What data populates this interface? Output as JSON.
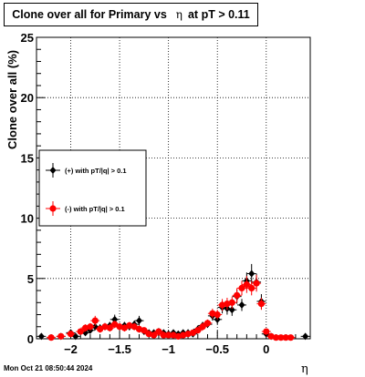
{
  "title": {
    "prefix": "Clone  over all for Primary vs",
    "symbol": "η",
    "suffix": "at pT > 0.11"
  },
  "ylabel": "Clone  over all (%)",
  "xlabel": "η",
  "datestamp": "Mon Oct 21 08:50:44 2024",
  "colors": {
    "plus": "#000000",
    "minus": "#ff0000",
    "grid": "#000000"
  },
  "chart_data": {
    "type": "scatter",
    "xlim": [
      -2.35,
      0.45
    ],
    "ylim": [
      0,
      25
    ],
    "grid": true,
    "legend_placement": "left-middle",
    "x_ticks": [
      {
        "value": -2,
        "label": "−2"
      },
      {
        "value": -1.5,
        "label": "−1.5"
      },
      {
        "value": -1,
        "label": "−1"
      },
      {
        "value": -0.5,
        "label": "−0.5"
      },
      {
        "value": 0,
        "label": "0"
      }
    ],
    "y_ticks": [
      {
        "value": 0,
        "label": "0"
      },
      {
        "value": 5,
        "label": "5"
      },
      {
        "value": 10,
        "label": "10"
      },
      {
        "value": 15,
        "label": "15"
      },
      {
        "value": 20,
        "label": "20"
      },
      {
        "value": 25,
        "label": "25"
      }
    ],
    "series": [
      {
        "name": "(+) with pT/|q| > 0.1",
        "color": "#000000",
        "x": [
          -2.3,
          -2.1,
          -2.0,
          -1.95,
          -1.85,
          -1.8,
          -1.75,
          -1.7,
          -1.65,
          -1.6,
          -1.55,
          -1.5,
          -1.45,
          -1.4,
          -1.35,
          -1.3,
          -1.25,
          -1.2,
          -1.15,
          -1.1,
          -1.05,
          -1.0,
          -0.95,
          -0.9,
          -0.85,
          -0.8,
          -0.75,
          -0.7,
          -0.65,
          -0.6,
          -0.55,
          -0.5,
          -0.45,
          -0.4,
          -0.35,
          -0.3,
          -0.25,
          -0.2,
          -0.15,
          -0.1,
          -0.05,
          0.0,
          0.05,
          0.4
        ],
        "y": [
          0.2,
          0.2,
          0.5,
          0.2,
          0.5,
          0.7,
          1.0,
          0.9,
          1.0,
          1.1,
          1.6,
          1.0,
          1.1,
          1.0,
          1.2,
          1.5,
          0.6,
          0.5,
          0.5,
          0.6,
          0.5,
          0.4,
          0.5,
          0.4,
          0.5,
          0.5,
          0.4,
          0.8,
          1.1,
          1.2,
          1.9,
          1.6,
          2.6,
          2.5,
          2.4,
          3.5,
          2.8,
          4.8,
          5.4,
          4.7,
          3.1,
          0.4,
          0.2,
          0.2
        ],
        "errors": [
          0.1,
          0.1,
          0.2,
          0.1,
          0.2,
          0.2,
          0.3,
          0.3,
          0.3,
          0.3,
          0.4,
          0.3,
          0.3,
          0.3,
          0.3,
          0.4,
          0.2,
          0.2,
          0.2,
          0.2,
          0.2,
          0.2,
          0.2,
          0.2,
          0.2,
          0.2,
          0.2,
          0.3,
          0.3,
          0.3,
          0.4,
          0.4,
          0.5,
          0.5,
          0.5,
          0.6,
          0.5,
          0.7,
          0.8,
          0.7,
          0.6,
          0.2,
          0.1,
          0.1
        ]
      },
      {
        "name": "(-) with pT/|q| > 0.1",
        "color": "#ff0000",
        "x": [
          -2.2,
          -2.1,
          -2.0,
          -1.9,
          -1.85,
          -1.8,
          -1.75,
          -1.7,
          -1.65,
          -1.6,
          -1.55,
          -1.5,
          -1.45,
          -1.4,
          -1.35,
          -1.3,
          -1.25,
          -1.2,
          -1.15,
          -1.1,
          -1.05,
          -1.0,
          -0.95,
          -0.9,
          -0.85,
          -0.8,
          -0.75,
          -0.7,
          -0.65,
          -0.6,
          -0.55,
          -0.5,
          -0.45,
          -0.4,
          -0.35,
          -0.3,
          -0.25,
          -0.2,
          -0.15,
          -0.1,
          -0.05,
          0.0,
          0.05,
          0.1,
          0.15,
          0.2,
          0.25
        ],
        "y": [
          0.1,
          0.2,
          0.4,
          0.6,
          0.9,
          1.0,
          1.5,
          0.8,
          1.0,
          0.9,
          1.2,
          1.0,
          0.9,
          1.1,
          1.0,
          0.8,
          0.7,
          0.4,
          0.3,
          0.6,
          0.3,
          0.3,
          0.3,
          0.2,
          0.3,
          0.4,
          0.5,
          0.7,
          1.0,
          1.3,
          2.1,
          2.0,
          2.8,
          2.9,
          3.0,
          3.6,
          4.2,
          4.5,
          4.2,
          4.6,
          2.9,
          0.6,
          0.2,
          0.1,
          0.1,
          0.1,
          0.1
        ],
        "errors": [
          0.1,
          0.1,
          0.2,
          0.2,
          0.3,
          0.3,
          0.4,
          0.3,
          0.3,
          0.3,
          0.3,
          0.3,
          0.3,
          0.3,
          0.3,
          0.3,
          0.2,
          0.2,
          0.1,
          0.2,
          0.1,
          0.1,
          0.1,
          0.1,
          0.1,
          0.2,
          0.2,
          0.2,
          0.3,
          0.3,
          0.4,
          0.4,
          0.5,
          0.5,
          0.5,
          0.6,
          0.6,
          0.7,
          0.6,
          0.7,
          0.5,
          0.2,
          0.1,
          0.1,
          0.1,
          0.1,
          0.1
        ]
      }
    ]
  }
}
